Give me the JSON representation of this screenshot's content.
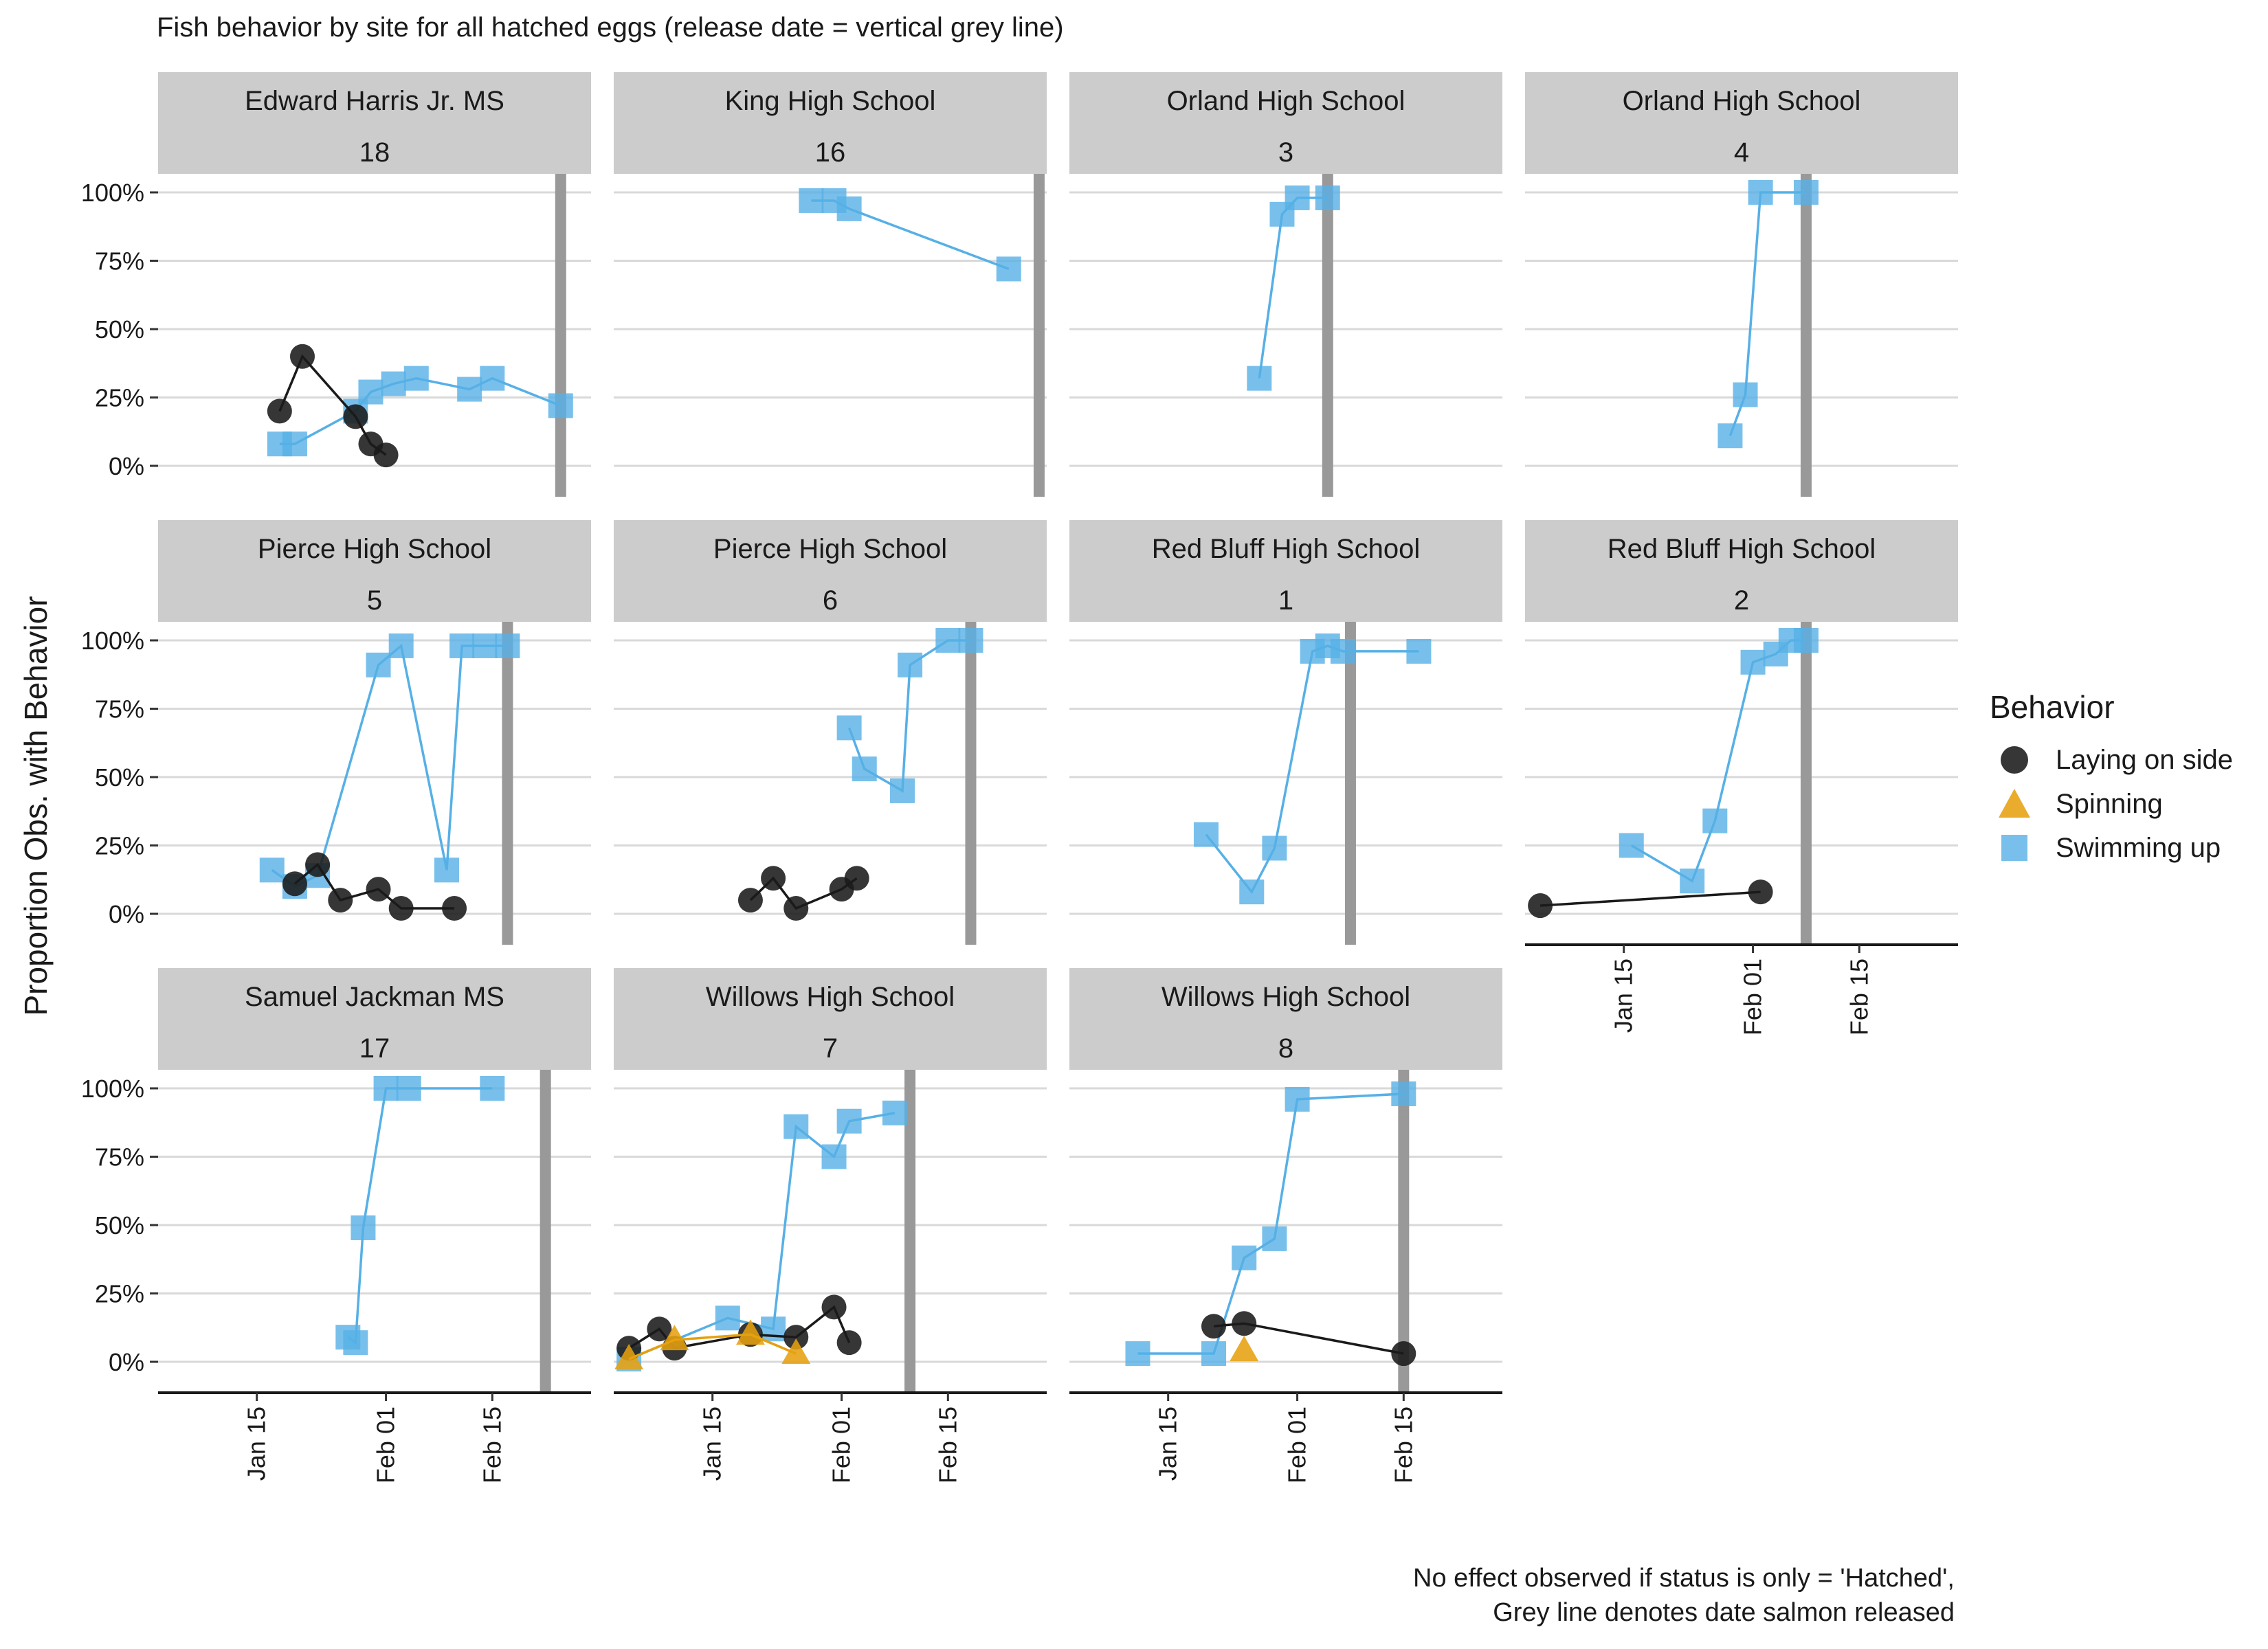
{
  "title": "Fish behavior by site for all hatched eggs (release date = vertical grey line)",
  "caption": {
    "line1": "No effect observed if status is only = 'Hatched',",
    "line2": "Grey line denotes date salmon released"
  },
  "colors": {
    "strip_bg": "#cccccc",
    "gridline": "#d9d9d9",
    "release_line": "#999999",
    "Laying on side": "#1a1a1a",
    "Spinning": "#e6a00f",
    "Swimming up": "#56b0e6"
  },
  "chart_data": {
    "type": "scatter",
    "subtype": "faceted line + point",
    "ylabel": "Proportion Obs. with Behavior",
    "xlabel": "",
    "x_ticks": [
      "Jan 15",
      "Feb 01",
      "Feb 15"
    ],
    "x_tick_dates": [
      "2021-01-15",
      "2021-02-01",
      "2021-02-15"
    ],
    "xlim": [
      "2021-01-02",
      "2021-02-28"
    ],
    "y_ticks": [
      "0%",
      "25%",
      "50%",
      "75%",
      "100%"
    ],
    "ylim": [
      0,
      1
    ],
    "grid": "horizontal major",
    "legend": {
      "title": "Behavior",
      "position": "right",
      "entries": [
        {
          "name": "Laying on side",
          "shape": "circle"
        },
        {
          "name": "Spinning",
          "shape": "triangle"
        },
        {
          "name": "Swimming up",
          "shape": "square"
        }
      ]
    },
    "facets": [
      {
        "site": "Edward Harris Jr. MS",
        "id": "18",
        "release": "2021-02-24",
        "series": {
          "Laying on side": [
            [
              "2021-01-18",
              0.2
            ],
            [
              "2021-01-21",
              0.4
            ],
            [
              "2021-01-28",
              0.18
            ],
            [
              "2021-01-30",
              0.08
            ],
            [
              "2021-02-01",
              0.04
            ]
          ],
          "Swimming up": [
            [
              "2021-01-18",
              0.08
            ],
            [
              "2021-01-20",
              0.08
            ],
            [
              "2021-01-28",
              0.2
            ],
            [
              "2021-01-30",
              0.27
            ],
            [
              "2021-02-02",
              0.3
            ],
            [
              "2021-02-05",
              0.32
            ],
            [
              "2021-02-12",
              0.28
            ],
            [
              "2021-02-15",
              0.32
            ],
            [
              "2021-02-24",
              0.22
            ]
          ]
        }
      },
      {
        "site": "King High School",
        "id": "16",
        "release": "2021-02-27",
        "series": {
          "Swimming up": [
            [
              "2021-01-28",
              0.97
            ],
            [
              "2021-01-31",
              0.97
            ],
            [
              "2021-02-02",
              0.94
            ],
            [
              "2021-02-23",
              0.72
            ]
          ]
        }
      },
      {
        "site": "Orland High School",
        "id": "3",
        "release": "2021-02-05",
        "series": {
          "Swimming up": [
            [
              "2021-01-27",
              0.32
            ],
            [
              "2021-01-30",
              0.92
            ],
            [
              "2021-02-01",
              0.98
            ],
            [
              "2021-02-05",
              0.98
            ]
          ]
        }
      },
      {
        "site": "Orland High School",
        "id": "4",
        "release": "2021-02-08",
        "series": {
          "Swimming up": [
            [
              "2021-01-29",
              0.11
            ],
            [
              "2021-01-31",
              0.26
            ],
            [
              "2021-02-02",
              1.0
            ],
            [
              "2021-02-08",
              1.0
            ]
          ]
        }
      },
      {
        "site": "Pierce High School",
        "id": "5",
        "release": "2021-02-17",
        "series": {
          "Laying on side": [
            [
              "2021-01-20",
              0.11
            ],
            [
              "2021-01-23",
              0.18
            ],
            [
              "2021-01-26",
              0.05
            ],
            [
              "2021-01-31",
              0.09
            ],
            [
              "2021-02-03",
              0.02
            ],
            [
              "2021-02-10",
              0.02
            ]
          ],
          "Swimming up": [
            [
              "2021-01-17",
              0.16
            ],
            [
              "2021-01-20",
              0.1
            ],
            [
              "2021-01-23",
              0.14
            ],
            [
              "2021-01-31",
              0.91
            ],
            [
              "2021-02-03",
              0.98
            ],
            [
              "2021-02-09",
              0.16
            ],
            [
              "2021-02-11",
              0.98
            ],
            [
              "2021-02-14",
              0.98
            ],
            [
              "2021-02-17",
              0.98
            ]
          ]
        }
      },
      {
        "site": "Pierce High School",
        "id": "6",
        "release": "2021-02-18",
        "series": {
          "Laying on side": [
            [
              "2021-01-20",
              0.05
            ],
            [
              "2021-01-23",
              0.13
            ],
            [
              "2021-01-26",
              0.02
            ],
            [
              "2021-02-01",
              0.09
            ],
            [
              "2021-02-03",
              0.13
            ]
          ],
          "Swimming up": [
            [
              "2021-02-02",
              0.68
            ],
            [
              "2021-02-04",
              0.53
            ],
            [
              "2021-02-09",
              0.45
            ],
            [
              "2021-02-10",
              0.91
            ],
            [
              "2021-02-15",
              1.0
            ],
            [
              "2021-02-18",
              1.0
            ]
          ]
        }
      },
      {
        "site": "Red Bluff High School",
        "id": "1",
        "release": "2021-02-08",
        "series": {
          "Swimming up": [
            [
              "2021-01-20",
              0.29
            ],
            [
              "2021-01-26",
              0.08
            ],
            [
              "2021-01-29",
              0.24
            ],
            [
              "2021-02-03",
              0.96
            ],
            [
              "2021-02-05",
              0.98
            ],
            [
              "2021-02-07",
              0.96
            ],
            [
              "2021-02-17",
              0.96
            ]
          ]
        }
      },
      {
        "site": "Red Bluff High School",
        "id": "2",
        "release": "2021-02-08",
        "series": {
          "Laying on side": [
            [
              "2021-01-04",
              0.03
            ],
            [
              "2021-02-02",
              0.08
            ]
          ],
          "Swimming up": [
            [
              "2021-01-16",
              0.25
            ],
            [
              "2021-01-24",
              0.12
            ],
            [
              "2021-01-27",
              0.34
            ],
            [
              "2021-02-01",
              0.92
            ],
            [
              "2021-02-04",
              0.95
            ],
            [
              "2021-02-06",
              1.0
            ],
            [
              "2021-02-08",
              1.0
            ]
          ]
        }
      },
      {
        "site": "Samuel Jackman MS",
        "id": "17",
        "release": "2021-02-22",
        "series": {
          "Swimming up": [
            [
              "2021-01-27",
              0.09
            ],
            [
              "2021-01-28",
              0.07
            ],
            [
              "2021-01-29",
              0.49
            ],
            [
              "2021-02-01",
              1.0
            ],
            [
              "2021-02-04",
              1.0
            ],
            [
              "2021-02-15",
              1.0
            ]
          ]
        }
      },
      {
        "site": "Willows High School",
        "id": "7",
        "release": "2021-02-10",
        "series": {
          "Laying on side": [
            [
              "2021-01-04",
              0.05
            ],
            [
              "2021-01-08",
              0.12
            ],
            [
              "2021-01-10",
              0.05
            ],
            [
              "2021-01-20",
              0.1
            ],
            [
              "2021-01-26",
              0.09
            ],
            [
              "2021-01-31",
              0.2
            ],
            [
              "2021-02-02",
              0.07
            ]
          ],
          "Spinning": [
            [
              "2021-01-04",
              0.01
            ],
            [
              "2021-01-10",
              0.08
            ],
            [
              "2021-01-20",
              0.1
            ],
            [
              "2021-01-26",
              0.03
            ]
          ],
          "Swimming up": [
            [
              "2021-01-04",
              0.01
            ],
            [
              "2021-01-17",
              0.16
            ],
            [
              "2021-01-23",
              0.12
            ],
            [
              "2021-01-26",
              0.86
            ],
            [
              "2021-01-31",
              0.75
            ],
            [
              "2021-02-02",
              0.88
            ],
            [
              "2021-02-08",
              0.91
            ]
          ]
        }
      },
      {
        "site": "Willows High School",
        "id": "8",
        "release": "2021-02-15",
        "series": {
          "Laying on side": [
            [
              "2021-01-21",
              0.13
            ],
            [
              "2021-01-25",
              0.14
            ],
            [
              "2021-02-15",
              0.03
            ]
          ],
          "Spinning": [
            [
              "2021-01-25",
              0.04
            ]
          ],
          "Swimming up": [
            [
              "2021-01-11",
              0.03
            ],
            [
              "2021-01-21",
              0.03
            ],
            [
              "2021-01-25",
              0.38
            ],
            [
              "2021-01-29",
              0.45
            ],
            [
              "2021-02-01",
              0.96
            ],
            [
              "2021-02-15",
              0.98
            ]
          ]
        }
      }
    ]
  }
}
